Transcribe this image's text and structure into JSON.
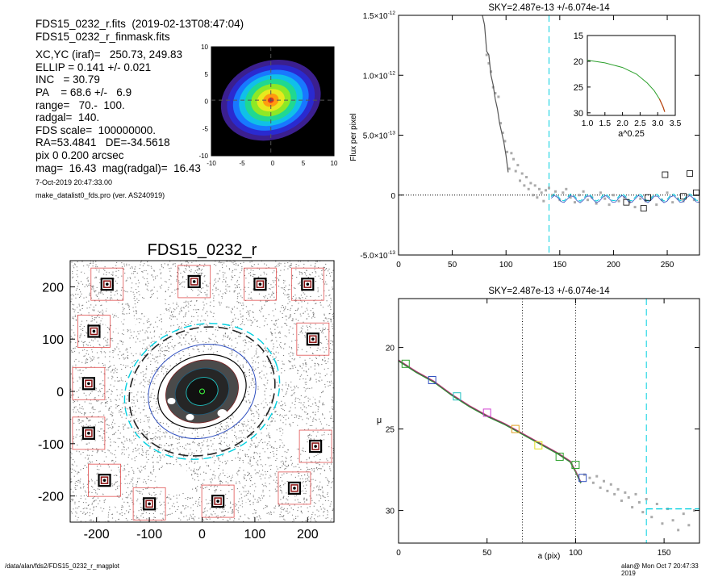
{
  "info": {
    "lines": [
      "FDS15_0232_r.fits  (2019-02-13T08:47:04)",
      "FDS15_0232_r_finmask.fits",
      "XC,YC (iraf)=   250.73, 249.83",
      "ELLIP = 0.141 +/- 0.021",
      "INC   = 30.79",
      "PA    = 68.6 +/-   6.9",
      "range=   70.-  100.",
      "radgal=  140.",
      "FDS scale=  100000000.",
      "RA=53.4841   DE=-34.5618",
      "pix 0 0.200 arcsec",
      "mag=  16.43  mag(radgal)=  16.43"
    ],
    "date": "7-Oct-2019 20:47:33.00",
    "program": "make_datalist0_fds.pro (ver. AS240919)"
  },
  "footer": {
    "left": "/data/alan/fds2/FDS15_0232_r_magplot",
    "right": "alan@  Mon Oct  7 20:47:33 2019"
  },
  "colors": {
    "profile_model": "#2ca02c",
    "sky_line": "#00d0e0",
    "mask_box": "#e05050"
  },
  "chart_data": [
    {
      "type": "heatmap",
      "name": "thumbnail",
      "x_ticks": [
        -10,
        -5,
        0,
        5,
        10
      ],
      "y_ticks": [
        -10,
        -5,
        0,
        5,
        10
      ],
      "xlim": [
        -10,
        10
      ],
      "ylim": [
        -10,
        10
      ]
    },
    {
      "type": "scatter",
      "name": "masked-image",
      "title": "FDS15_0232_r",
      "x_ticks": [
        -200,
        -100,
        0,
        100,
        200
      ],
      "y_ticks": [
        200,
        100,
        0,
        -100,
        -200
      ],
      "xlim": [
        -250,
        250
      ],
      "ylim": [
        -250,
        250
      ],
      "stars": [
        [
          -180,
          205
        ],
        [
          -15,
          210
        ],
        [
          110,
          205
        ],
        [
          200,
          205
        ],
        [
          -205,
          115
        ],
        [
          210,
          100
        ],
        [
          -215,
          15
        ],
        [
          -215,
          -80
        ],
        [
          215,
          -105
        ],
        [
          -185,
          -170
        ],
        [
          175,
          -185
        ],
        [
          -100,
          -215
        ],
        [
          30,
          -210
        ]
      ],
      "ellipse": {
        "pa": 68.6,
        "ellip": 0.141
      }
    },
    {
      "type": "scatter",
      "name": "sky-flux",
      "title": "SKY=2.487e-13 +/-6.074e-14",
      "ylabel": "Flux per pixel",
      "xlim": [
        0,
        280
      ],
      "ylim": [
        -5e-13,
        1.5e-12
      ],
      "x_ticks": [
        0,
        50,
        100,
        150,
        200,
        250
      ],
      "y_ticks": [
        {
          "v": 1.5e-12,
          "m": "1.5",
          "e": "-12"
        },
        {
          "v": 1e-12,
          "m": "1.0",
          "e": "-12"
        },
        {
          "v": 5e-13,
          "m": "5.0",
          "e": "-13"
        },
        {
          "v": 0,
          "m": "0",
          "e": ""
        },
        {
          "v": -5e-13,
          "m": "-5.0",
          "e": "-13"
        }
      ],
      "sky_radius": 140,
      "profile": [
        [
          78,
          1.5e-12
        ],
        [
          80,
          1.42e-12
        ],
        [
          82,
          1.2e-12
        ],
        [
          84,
          1.17e-12
        ],
        [
          86,
          1e-12
        ],
        [
          88,
          9.2e-13
        ],
        [
          90,
          8e-13
        ],
        [
          92,
          7.2e-13
        ],
        [
          94,
          6e-13
        ],
        [
          96,
          5.2e-13
        ],
        [
          98,
          4.4e-13
        ],
        [
          100,
          3.3e-13
        ],
        [
          102,
          1.9e-13
        ]
      ],
      "points": [
        [
          82,
          1.17e-12
        ],
        [
          84,
          1.1e-12
        ],
        [
          86,
          1.03e-12
        ],
        [
          88,
          9e-13
        ],
        [
          90,
          8.5e-13
        ],
        [
          93,
          8.2e-13
        ],
        [
          95,
          6e-13
        ],
        [
          97,
          5.2e-13
        ],
        [
          99,
          4.5e-13
        ],
        [
          101,
          3.6e-13
        ],
        [
          103,
          2.2e-13
        ],
        [
          105,
          3.5e-13
        ],
        [
          107,
          3e-13
        ],
        [
          109,
          2e-13
        ],
        [
          111,
          2.5e-13
        ],
        [
          113,
          1.2e-13
        ],
        [
          115,
          1.8e-13
        ],
        [
          117,
          8e-14
        ],
        [
          119,
          1.5e-13
        ],
        [
          121,
          5e-14
        ],
        [
          123,
          1e-13
        ],
        [
          125,
          0.0
        ],
        [
          127,
          8e-14
        ],
        [
          129,
          -2e-14
        ],
        [
          131,
          5e-14
        ],
        [
          133,
          2e-14
        ],
        [
          135,
          -5e-14
        ],
        [
          137,
          4e-14
        ],
        [
          140,
          6e-14
        ],
        [
          143,
          0.0
        ],
        [
          146,
          3e-14
        ],
        [
          150,
          -4e-14
        ],
        [
          153,
          2e-14
        ],
        [
          156,
          5e-14
        ],
        [
          160,
          -2e-14
        ],
        [
          164,
          -6e-14
        ],
        [
          168,
          0.0
        ],
        [
          172,
          3e-14
        ],
        [
          176,
          -4e-14
        ],
        [
          180,
          -2e-14
        ],
        [
          184,
          -7e-14
        ],
        [
          188,
          2e-14
        ],
        [
          192,
          -3e-14
        ],
        [
          196,
          -8e-14
        ],
        [
          200,
          0.0
        ],
        [
          205,
          -5e-14
        ],
        [
          210,
          -2e-14
        ],
        [
          215,
          -6e-14
        ],
        [
          220,
          -1e-13
        ],
        [
          225,
          -3e-14
        ],
        [
          230,
          -5e-14
        ],
        [
          235,
          -2e-14
        ],
        [
          240,
          -8e-14
        ],
        [
          245,
          -4e-14
        ],
        [
          250,
          2e-14
        ],
        [
          255,
          -6e-14
        ],
        [
          260,
          -3e-14
        ],
        [
          265,
          -5e-14
        ],
        [
          270,
          0.0
        ],
        [
          275,
          -4e-14
        ]
      ],
      "boxes": [
        [
          232,
          -2e-14
        ],
        [
          228,
          -1.1e-13
        ],
        [
          212,
          -6e-14
        ],
        [
          248,
          1.7e-13
        ],
        [
          271,
          1.8e-13
        ],
        [
          265,
          -1e-14
        ],
        [
          277,
          2e-14
        ]
      ]
    },
    {
      "type": "line",
      "name": "inset",
      "xlabel": "a^0.25",
      "xlim": [
        1.0,
        3.5
      ],
      "ylim": [
        15,
        30.5
      ],
      "x_ticks": [
        1.0,
        1.5,
        2.0,
        2.5,
        3.0,
        3.5
      ],
      "y_ticks": [
        15,
        20,
        25,
        30
      ],
      "curve": [
        [
          1.0,
          19.8
        ],
        [
          1.5,
          20.3
        ],
        [
          2.0,
          21.2
        ],
        [
          2.4,
          22.5
        ],
        [
          2.7,
          24.2
        ],
        [
          2.9,
          25.7
        ],
        [
          3.05,
          27.3
        ],
        [
          3.15,
          28.8
        ],
        [
          3.2,
          29.8
        ]
      ]
    },
    {
      "type": "line",
      "name": "mu-profile",
      "title": "SKY=2.487e-13 +/-6.074e-14",
      "xlabel": "a (pix)",
      "ylabel": "μ",
      "xlim": [
        0,
        170
      ],
      "ylim": [
        32,
        17
      ],
      "x_ticks": [
        0,
        50,
        100,
        150
      ],
      "y_ticks": [
        20,
        25,
        30
      ],
      "range_lines": [
        70,
        100
      ],
      "sky_radius": 140,
      "model": [
        [
          0,
          20.8
        ],
        [
          10,
          21.5
        ],
        [
          20,
          22.1
        ],
        [
          30,
          22.9
        ],
        [
          40,
          23.6
        ],
        [
          50,
          24.2
        ],
        [
          60,
          24.7
        ],
        [
          70,
          25.3
        ],
        [
          80,
          25.9
        ],
        [
          90,
          26.5
        ],
        [
          97,
          27.0
        ],
        [
          100,
          27.6
        ],
        [
          103,
          28.3
        ]
      ],
      "boxes": [
        [
          4,
          21.0
        ],
        [
          19,
          22.0
        ],
        [
          33,
          23.0
        ],
        [
          50,
          24.0
        ],
        [
          66,
          25.0
        ],
        [
          79,
          26.0
        ],
        [
          91,
          26.7
        ],
        [
          100,
          27.2
        ],
        [
          104,
          28.0
        ]
      ],
      "points": [
        [
          105,
          27.8
        ],
        [
          108,
          28.0
        ],
        [
          110,
          28.3
        ],
        [
          112,
          27.9
        ],
        [
          114,
          28.6
        ],
        [
          116,
          28.2
        ],
        [
          118,
          28.8
        ],
        [
          120,
          28.4
        ],
        [
          122,
          29.0
        ],
        [
          124,
          28.7
        ],
        [
          126,
          29.4
        ],
        [
          128,
          28.9
        ],
        [
          130,
          29.2
        ],
        [
          132,
          29.8
        ],
        [
          134,
          29.0
        ],
        [
          136,
          29.5
        ],
        [
          138,
          30.1
        ],
        [
          140,
          29.3
        ],
        [
          143,
          30.4
        ],
        [
          146,
          29.6
        ],
        [
          149,
          30.8
        ],
        [
          152,
          29.9
        ],
        [
          155,
          30.6
        ],
        [
          158,
          31.2
        ],
        [
          161,
          30.2
        ],
        [
          164,
          30.9
        ],
        [
          167,
          30.0
        ]
      ],
      "sky_level": [
        [
          140,
          29.9
        ],
        [
          170,
          29.9
        ]
      ]
    }
  ]
}
